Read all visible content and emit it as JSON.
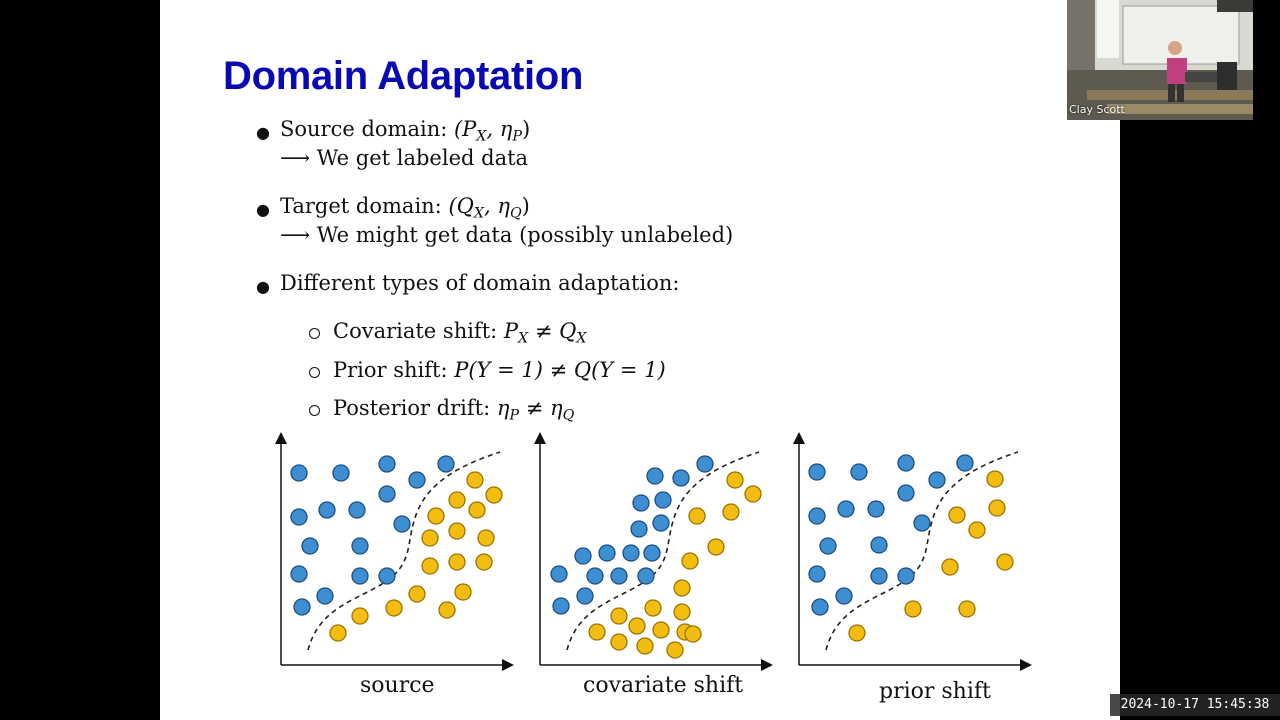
{
  "slide": {
    "title": "Domain Adaptation",
    "bullets": [
      {
        "text": "Source domain: ",
        "math": "(P",
        "sub1": "X",
        "mid": ", η",
        "sub2": "P",
        "end": ")",
        "arrow": "⟶",
        "sub_text": "We get labeled data"
      },
      {
        "text": "Target domain: ",
        "math": "(Q",
        "sub1": "X",
        "mid": ", η",
        "sub2": "Q",
        "end": ")",
        "arrow": "⟶",
        "sub_text": "We might get data (possibly unlabeled)"
      },
      {
        "text": "Different types of domain adaptation:"
      }
    ],
    "sub_bullets": [
      {
        "label": "Covariate shift: ",
        "a": "P",
        "a_sub": "X",
        "op": " ≠ ",
        "b": "Q",
        "b_sub": "X"
      },
      {
        "label": "Prior shift: ",
        "expr": "P(Y = 1) ≠ Q(Y = 1)"
      },
      {
        "label": "Posterior drift: ",
        "a": "η",
        "a_sub": "P",
        "op": " ≠ ",
        "b": "η",
        "b_sub": "Q"
      }
    ],
    "figure": {
      "captions": [
        "source",
        "covariate shift",
        "prior shift"
      ],
      "colors": {
        "class_a": "#3d8fd1",
        "class_b": "#f2bd10"
      }
    }
  },
  "webcam": {
    "name": "Clay Scott"
  },
  "timestamp": "2024-10-17  15:45:38"
}
